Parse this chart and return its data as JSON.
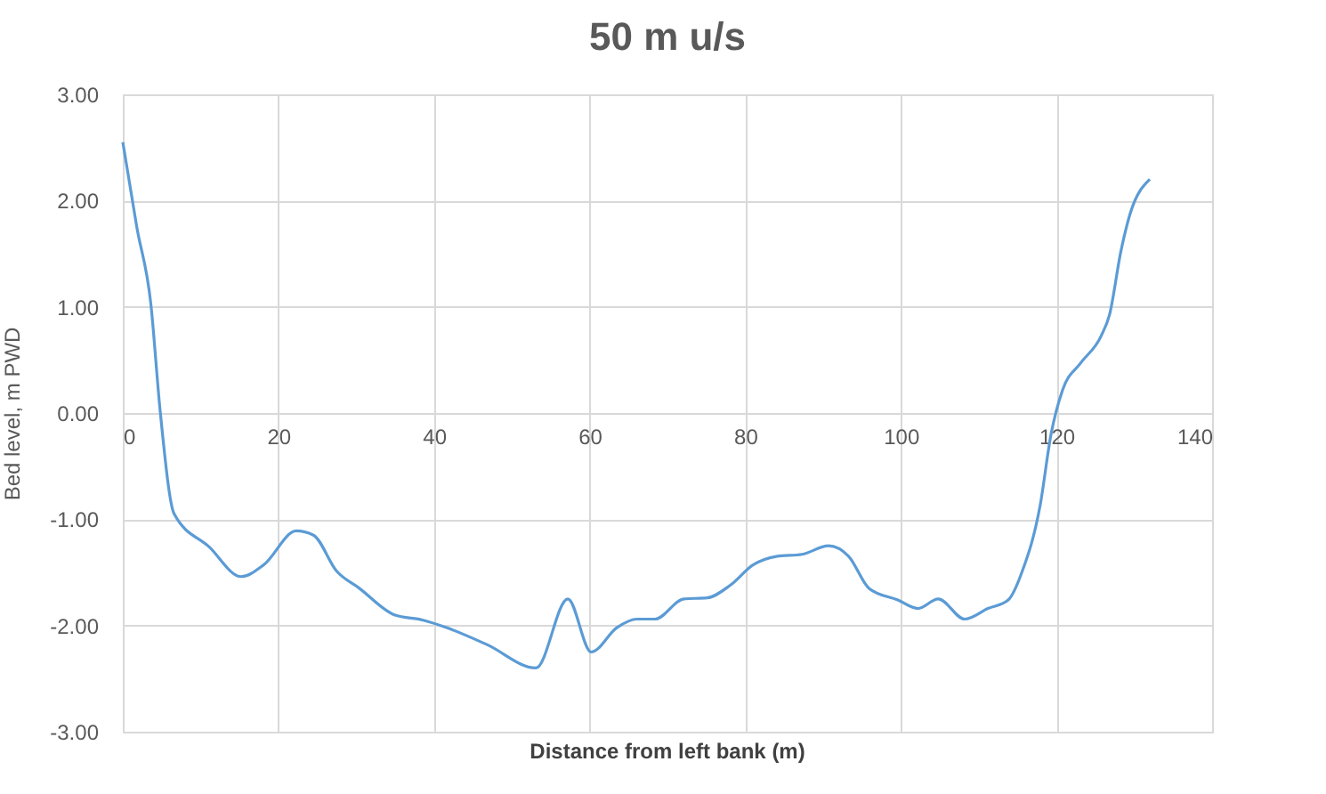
{
  "chart_data": {
    "type": "line",
    "title": "50 m u/s",
    "xlabel": "Distance from left bank (m)",
    "ylabel": "Bed level, m PWD",
    "x": [
      0,
      1.8,
      3.6,
      4.8,
      6.6,
      11.1,
      15.2,
      18.1,
      22.3,
      24.5,
      27.5,
      30.4,
      34.9,
      38.6,
      41.6,
      46.8,
      53.1,
      57.2,
      60.2,
      63.5,
      66.1,
      68.4,
      72.1,
      75.1,
      78.1,
      81.0,
      84.0,
      87.3,
      90.7,
      93.3,
      95.9,
      99.6,
      102.2,
      104.8,
      108.2,
      111.2,
      113.8,
      115.6,
      117.9,
      119.3,
      120.8,
      123.1,
      125.7,
      126.8,
      128.3,
      129.4,
      132.0
    ],
    "series": [
      {
        "color": "#5b9bd5",
        "values": [
          2.55,
          1.75,
          1.03,
          0.02,
          -0.95,
          -1.26,
          -1.54,
          -1.43,
          -1.11,
          -1.15,
          -1.49,
          -1.65,
          -1.9,
          -1.95,
          -2.02,
          -2.18,
          -2.4,
          -1.75,
          -2.25,
          -2.02,
          -1.94,
          -1.94,
          -1.75,
          -1.74,
          -1.62,
          -1.43,
          -1.35,
          -1.33,
          -1.25,
          -1.35,
          -1.65,
          -1.76,
          -1.84,
          -1.75,
          -1.94,
          -1.84,
          -1.76,
          -1.49,
          -0.87,
          -0.2,
          0.22,
          0.47,
          0.72,
          0.92,
          1.53,
          1.86,
          2.2
        ]
      }
    ],
    "xlim": [
      0,
      140
    ],
    "xticks": [
      0,
      20,
      40,
      60,
      80,
      100,
      120,
      140
    ],
    "ylim": [
      -3,
      3
    ],
    "yticks": [
      {
        "value": -3,
        "label": "-3.00"
      },
      {
        "value": -2,
        "label": "-2.00"
      },
      {
        "value": -1,
        "label": "-1.00"
      },
      {
        "value": 0,
        "label": "0.00"
      },
      {
        "value": 1,
        "label": "1.00"
      },
      {
        "value": 2,
        "label": "2.00"
      },
      {
        "value": 3,
        "label": "3.00"
      }
    ],
    "grid": true,
    "line_style": "solid",
    "marker": "none"
  }
}
